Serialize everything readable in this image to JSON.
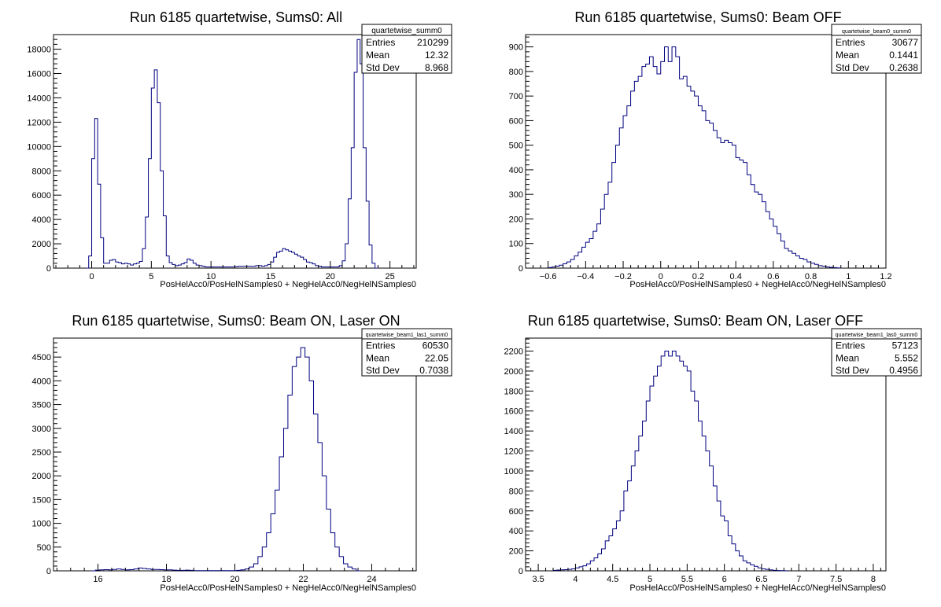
{
  "chart_data": [
    {
      "type": "bar",
      "title": "Run 6185 quartetwise, Sums0: All",
      "xlabel": "PosHelAcc0/PosHelNSamples0 + NegHelAcc0/NegHelNSamples0",
      "ylabel": "",
      "xlim": [
        -3.2,
        27.2
      ],
      "ylim": [
        0,
        19200
      ],
      "xticks": [
        0,
        5,
        10,
        15,
        20,
        25
      ],
      "xtick_labels": [
        "0",
        "5",
        "10",
        "15",
        "20",
        "25"
      ],
      "yticks": [
        0,
        2000,
        4000,
        6000,
        8000,
        10000,
        12000,
        14000,
        16000,
        18000
      ],
      "ytick_labels": [
        "0",
        "2000",
        "4000",
        "6000",
        "8000",
        "10000",
        "12000",
        "14000",
        "16000",
        "18000"
      ],
      "stats": {
        "name": "quartetwise_summ0",
        "rows": [
          {
            "label": "Entries",
            "value": "210299"
          },
          {
            "label": "Mean",
            "value": "12.32"
          },
          {
            "label": "Std Dev",
            "value": "8.968"
          }
        ]
      },
      "bins": {
        "start": -0.5,
        "width": 0.25,
        "values": [
          0,
          1000,
          9000,
          12300,
          6900,
          2500,
          400,
          400,
          650,
          700,
          500,
          450,
          350,
          400,
          350,
          250,
          350,
          400,
          550,
          1600,
          4200,
          9000,
          14800,
          16300,
          13600,
          8000,
          4300,
          1000,
          450,
          300,
          200,
          250,
          350,
          450,
          750,
          650,
          400,
          250,
          200,
          150,
          100,
          100,
          100,
          100,
          100,
          100,
          100,
          100,
          100,
          100,
          120,
          150,
          150,
          150,
          150,
          150,
          150,
          200,
          200,
          150,
          200,
          300,
          500,
          900,
          1300,
          1400,
          1600,
          1500,
          1400,
          1300,
          1150,
          1000,
          900,
          700,
          500,
          450,
          350,
          200,
          150,
          100,
          100,
          100,
          100,
          100,
          100,
          200,
          600,
          2000,
          5700,
          9900,
          16100,
          18800,
          16800,
          9900,
          5500,
          1900,
          400,
          0
        ]
      }
    },
    {
      "type": "bar",
      "title": "Run 6185 quartetwise, Sums0: Beam OFF",
      "xlabel": "PosHelAcc0/PosHelNSamples0 + NegHelAcc0/NegHelNSamples0",
      "ylabel": "",
      "xlim": [
        -0.72,
        1.2
      ],
      "ylim": [
        0,
        950
      ],
      "xticks": [
        -0.6,
        -0.4,
        -0.2,
        0,
        0.2,
        0.4,
        0.6,
        0.8,
        1,
        1.2
      ],
      "xtick_labels": [
        "−0.6",
        "−0.4",
        "−0.2",
        "0",
        "0.2",
        "0.4",
        "0.6",
        "0.8",
        "1",
        "1.2"
      ],
      "yticks": [
        0,
        100,
        200,
        300,
        400,
        500,
        600,
        700,
        800,
        900
      ],
      "ytick_labels": [
        "0",
        "100",
        "200",
        "300",
        "400",
        "500",
        "600",
        "700",
        "800",
        "900"
      ],
      "stats": {
        "name": "quartetwise_beam0_summ0",
        "rows": [
          {
            "label": "Entries",
            "value": "30677"
          },
          {
            "label": "Mean",
            "value": "0.1441"
          },
          {
            "label": "Std Dev",
            "value": "0.2638"
          }
        ]
      },
      "bins": {
        "start": -0.6,
        "width": 0.02,
        "values": [
          2,
          5,
          8,
          12,
          18,
          25,
          35,
          50,
          65,
          85,
          105,
          120,
          150,
          180,
          240,
          300,
          350,
          430,
          500,
          570,
          620,
          660,
          720,
          760,
          780,
          820,
          830,
          860,
          820,
          790,
          840,
          900,
          840,
          900,
          860,
          770,
          780,
          740,
          720,
          700,
          660,
          640,
          600,
          590,
          560,
          530,
          510,
          520,
          510,
          500,
          450,
          440,
          430,
          380,
          340,
          310,
          300,
          270,
          230,
          200,
          170,
          140,
          110,
          80,
          70,
          60,
          50,
          40,
          35,
          25,
          20,
          15,
          10,
          8,
          5,
          3,
          2,
          1
        ]
      }
    },
    {
      "type": "bar",
      "title": "Run 6185 quartetwise, Sums0: Beam ON, Laser ON",
      "xlabel": "PosHelAcc0/PosHelNSamples0 + NegHelAcc0/NegHelNSamples0",
      "ylabel": "",
      "xlim": [
        14.7,
        25.3
      ],
      "ylim": [
        0,
        4900
      ],
      "xticks": [
        16,
        18,
        20,
        22,
        24
      ],
      "xtick_labels": [
        "16",
        "18",
        "20",
        "22",
        "24"
      ],
      "yticks": [
        0,
        500,
        1000,
        1500,
        2000,
        2500,
        3000,
        3500,
        4000,
        4500
      ],
      "ytick_labels": [
        "0",
        "500",
        "1000",
        "1500",
        "2000",
        "2500",
        "3000",
        "3500",
        "4000",
        "4500"
      ],
      "stats": {
        "name": "quartetwise_beam1_las1_summ0",
        "rows": [
          {
            "label": "Entries",
            "value": "60530"
          },
          {
            "label": "Mean",
            "value": "22.05"
          },
          {
            "label": "Std Dev",
            "value": "0.7038"
          }
        ]
      },
      "bins": {
        "start": 15.8,
        "width": 0.125,
        "values": [
          0,
          15,
          20,
          25,
          20,
          30,
          40,
          30,
          20,
          25,
          40,
          60,
          50,
          40,
          30,
          30,
          25,
          20,
          20,
          15,
          10,
          10,
          15,
          10,
          5,
          5,
          5,
          5,
          5,
          5,
          5,
          5,
          5,
          5,
          10,
          20,
          40,
          80,
          150,
          300,
          500,
          800,
          1200,
          1700,
          2400,
          3000,
          3700,
          4300,
          4500,
          4700,
          4500,
          4000,
          3300,
          2700,
          2000,
          1300,
          800,
          500,
          300,
          150,
          80,
          40,
          0
        ]
      }
    },
    {
      "type": "bar",
      "title": "Run 6185 quartetwise, Sums0: Beam ON, Laser OFF",
      "xlabel": "PosHelAcc0/PosHelNSamples0 + NegHelAcc0/NegHelNSamples0",
      "ylabel": "",
      "xlim": [
        3.33,
        8.17
      ],
      "ylim": [
        0,
        2330
      ],
      "xticks": [
        3.5,
        4,
        4.5,
        5,
        5.5,
        6,
        6.5,
        7,
        7.5,
        8
      ],
      "xtick_labels": [
        "3.5",
        "4",
        "4.5",
        "5",
        "5.5",
        "6",
        "6.5",
        "7",
        "7.5",
        "8"
      ],
      "yticks": [
        0,
        200,
        400,
        600,
        800,
        1000,
        1200,
        1400,
        1600,
        1800,
        2000,
        2200
      ],
      "ytick_labels": [
        "0",
        "200",
        "400",
        "600",
        "800",
        "1000",
        "1200",
        "1400",
        "1600",
        "1800",
        "2000",
        "2200"
      ],
      "stats": {
        "name": "quartetwise_beam1_las0_summ0",
        "rows": [
          {
            "label": "Entries",
            "value": "57123"
          },
          {
            "label": "Mean",
            "value": "5.552"
          },
          {
            "label": "Std Dev",
            "value": "0.4956"
          }
        ]
      },
      "bins": {
        "start": 3.7,
        "width": 0.05,
        "values": [
          5,
          8,
          10,
          12,
          15,
          20,
          30,
          40,
          50,
          70,
          100,
          130,
          170,
          220,
          300,
          350,
          420,
          500,
          600,
          800,
          900,
          1050,
          1200,
          1350,
          1500,
          1700,
          1850,
          1950,
          2050,
          2150,
          2200,
          2150,
          2200,
          2150,
          2100,
          2050,
          2000,
          1800,
          1700,
          1500,
          1350,
          1200,
          1050,
          850,
          700,
          550,
          500,
          350,
          270,
          200,
          150,
          100,
          80,
          60,
          45,
          30,
          20,
          15,
          10,
          5,
          3,
          2,
          1
        ]
      }
    }
  ]
}
